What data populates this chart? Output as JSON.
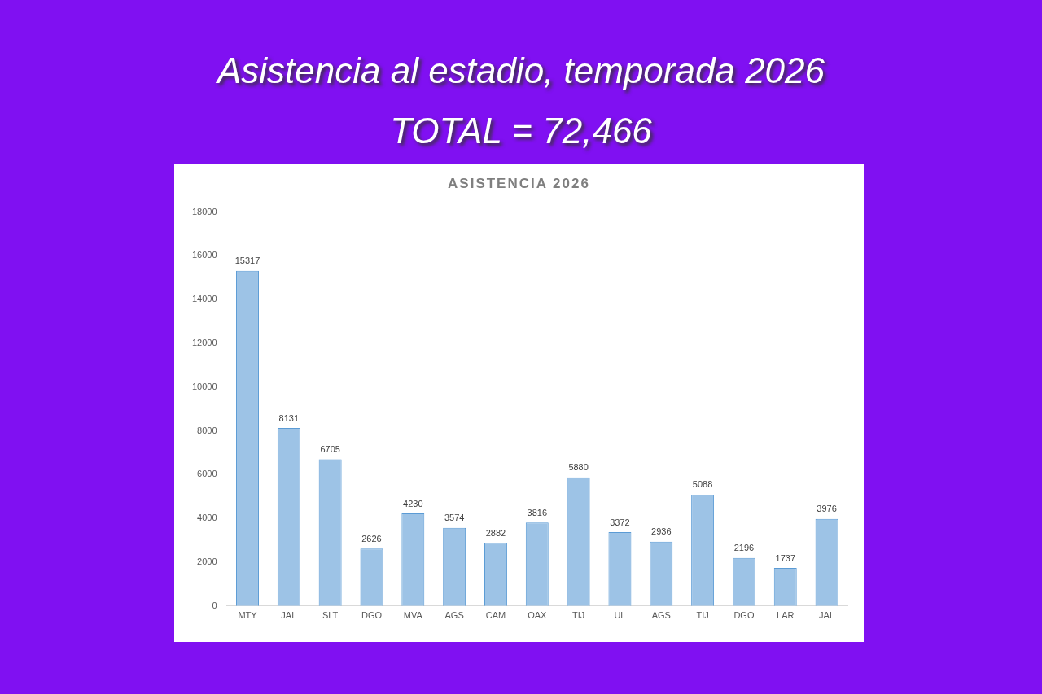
{
  "chart_data": {
    "type": "bar",
    "title": "Asistencia al estadio, temporada 2026",
    "subtitle": "TOTAL = 72,466",
    "annotations": [
      "ASISTENCIA 2026"
    ],
    "categories": [
      "MTY",
      "JAL",
      "SLT",
      "DGO",
      "MVA",
      "AGS",
      "CAM",
      "OAX",
      "TIJ",
      "UL",
      "AGS",
      "TIJ",
      "DGO",
      "LAR",
      "JAL"
    ],
    "values": [
      15317,
      8131,
      6705,
      2626,
      4230,
      3574,
      2882,
      3816,
      5880,
      3372,
      2936,
      5088,
      2196,
      1737,
      3976
    ],
    "color": "#9dc3e6",
    "ylim": [
      0,
      18000
    ],
    "yticks": [
      0,
      2000,
      4000,
      6000,
      8000,
      10000,
      12000,
      14000,
      16000,
      18000
    ],
    "grid": false,
    "legend": false,
    "data_labels": true
  }
}
